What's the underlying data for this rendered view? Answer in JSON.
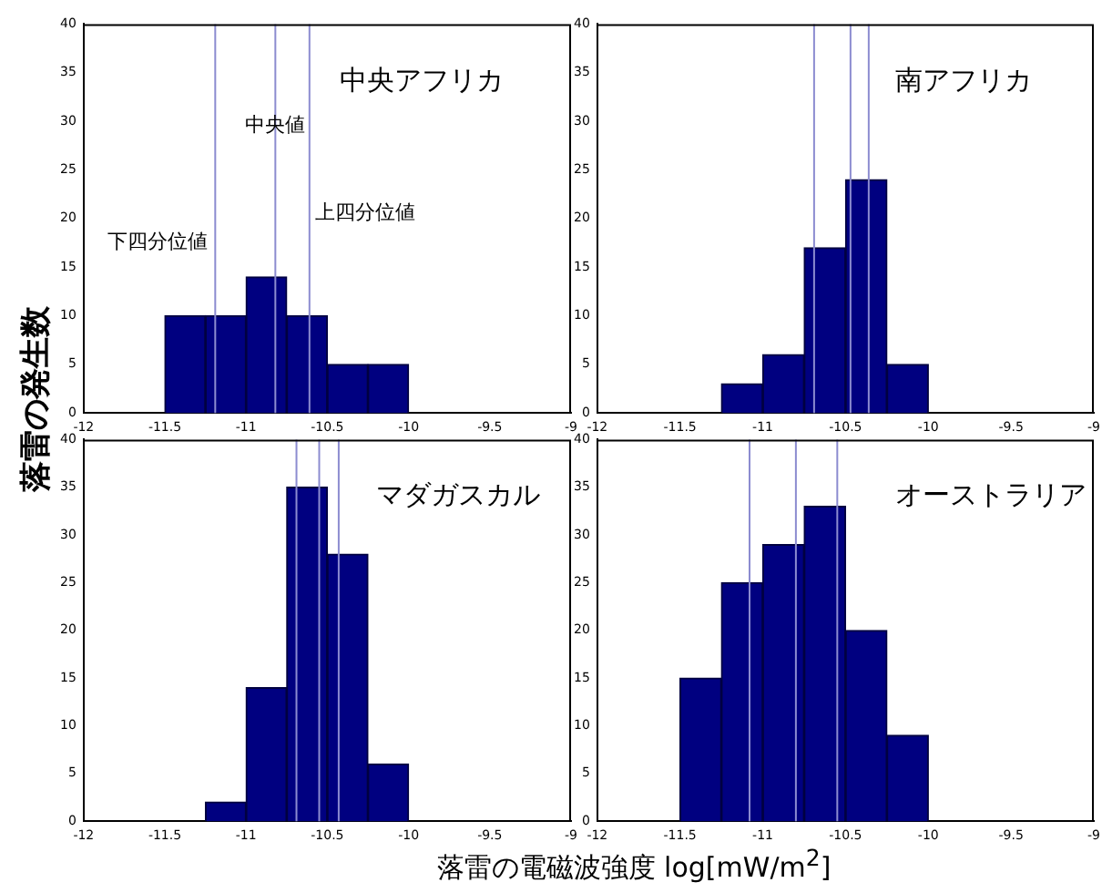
{
  "chart_data": [
    {
      "type": "histogram",
      "title": "中央アフリカ",
      "xlabel": "落雷の電磁波強度 log[mW/m$^{2}$]",
      "ylabel": "落雷の発生数",
      "bins": [
        -11.5,
        -11.25,
        -11,
        -10.75,
        -10.5,
        -10.25,
        -10
      ],
      "values": [
        10,
        10,
        14,
        10,
        5,
        5
      ],
      "color": "#000080",
      "xlim": [
        -12,
        -9
      ],
      "xticks": [
        -12,
        -11.5,
        -11,
        -10.5,
        -10,
        -9.5,
        -9
      ],
      "ylim": [
        0,
        40
      ],
      "yticks": [
        0,
        5,
        10,
        15,
        20,
        25,
        30,
        35,
        40
      ],
      "grid": false,
      "ref_lines": [
        {
          "axis": "x",
          "value": -11.19,
          "label": "下四分位値",
          "color": "#8c8cd0"
        },
        {
          "axis": "x",
          "value": -10.82,
          "label": "中央値",
          "color": "#8c8cd0"
        },
        {
          "axis": "x",
          "value": -10.61,
          "label": "上四分位値",
          "color": "#8c8cd0"
        }
      ]
    },
    {
      "type": "histogram",
      "title": "南アフリカ",
      "bins": [
        -11.25,
        -11,
        -10.75,
        -10.5,
        -10.25,
        -10
      ],
      "values": [
        3,
        6,
        17,
        24,
        5
      ],
      "color": "#000080",
      "xlim": [
        -12,
        -9
      ],
      "xticks": [
        -12,
        -11.5,
        -11,
        -10.5,
        -10,
        -9.5,
        -9
      ],
      "ylim": [
        0,
        40
      ],
      "yticks": [
        0,
        5,
        10,
        15,
        20,
        25,
        30,
        35,
        40
      ],
      "grid": false,
      "ref_lines": [
        {
          "axis": "x",
          "value": -10.69,
          "color": "#8c8cd0"
        },
        {
          "axis": "x",
          "value": -10.47,
          "color": "#8c8cd0"
        },
        {
          "axis": "x",
          "value": -10.36,
          "color": "#8c8cd0"
        }
      ]
    },
    {
      "type": "histogram",
      "title": "マダガスカル",
      "bins": [
        -11.25,
        -11,
        -10.75,
        -10.5,
        -10.25,
        -10
      ],
      "values": [
        2,
        14,
        35,
        28,
        6
      ],
      "color": "#000080",
      "xlim": [
        -12,
        -9
      ],
      "xticks": [
        -12,
        -11.5,
        -11,
        -10.5,
        -10,
        -9.5,
        -9
      ],
      "ylim": [
        0,
        40
      ],
      "yticks": [
        0,
        5,
        10,
        15,
        20,
        25,
        30,
        35,
        40
      ],
      "grid": false,
      "ref_lines": [
        {
          "axis": "x",
          "value": -10.69,
          "color": "#8c8cd0"
        },
        {
          "axis": "x",
          "value": -10.55,
          "color": "#8c8cd0"
        },
        {
          "axis": "x",
          "value": -10.43,
          "color": "#8c8cd0"
        }
      ]
    },
    {
      "type": "histogram",
      "title": "オーストラリア",
      "bins": [
        -11.5,
        -11.25,
        -11,
        -10.75,
        -10.5,
        -10.25,
        -10
      ],
      "values": [
        15,
        25,
        29,
        33,
        20,
        9
      ],
      "color": "#000080",
      "xlim": [
        -12,
        -9
      ],
      "xticks": [
        -12,
        -11.5,
        -11,
        -10.5,
        -10,
        -9.5,
        -9
      ],
      "ylim": [
        0,
        40
      ],
      "yticks": [
        0,
        5,
        10,
        15,
        20,
        25,
        30,
        35,
        40
      ],
      "grid": false,
      "ref_lines": [
        {
          "axis": "x",
          "value": -11.08,
          "color": "#8c8cd0"
        },
        {
          "axis": "x",
          "value": -10.8,
          "color": "#8c8cd0"
        },
        {
          "axis": "x",
          "value": -10.55,
          "color": "#8c8cd0"
        }
      ]
    }
  ]
}
